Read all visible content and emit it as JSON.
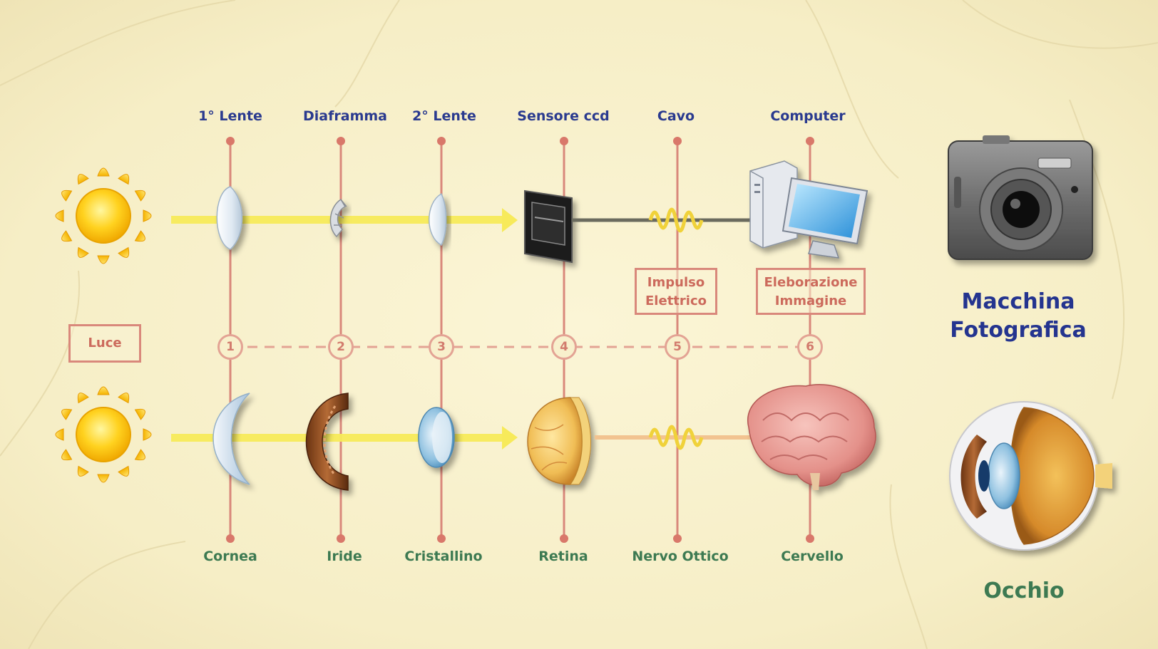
{
  "light_box": "Luce",
  "camera": {
    "title_line1": "Macchina",
    "title_line2": "Fotografica",
    "parts": [
      "1°  Lente",
      "Diaframma",
      "2° Lente",
      "Sensore ccd",
      "Cavo",
      "Computer"
    ]
  },
  "eye": {
    "title": "Occhio",
    "parts": [
      "Cornea",
      "Iride",
      "Cristallino",
      "Retina",
      "Nervo Ottico",
      "Cervello"
    ]
  },
  "steps": [
    "1",
    "2",
    "3",
    "4",
    "5",
    "6"
  ],
  "info_boxes": {
    "impulse_line1": "Impulso",
    "impulse_line2": "Elettrico",
    "processing_line1": "Eleborazione",
    "processing_line2": "Immagine"
  },
  "colors": {
    "camera_text": "#2a3a8f",
    "eye_text": "#3d7a52",
    "line": "#d9887b",
    "light_beam": "#f7ea5a"
  }
}
